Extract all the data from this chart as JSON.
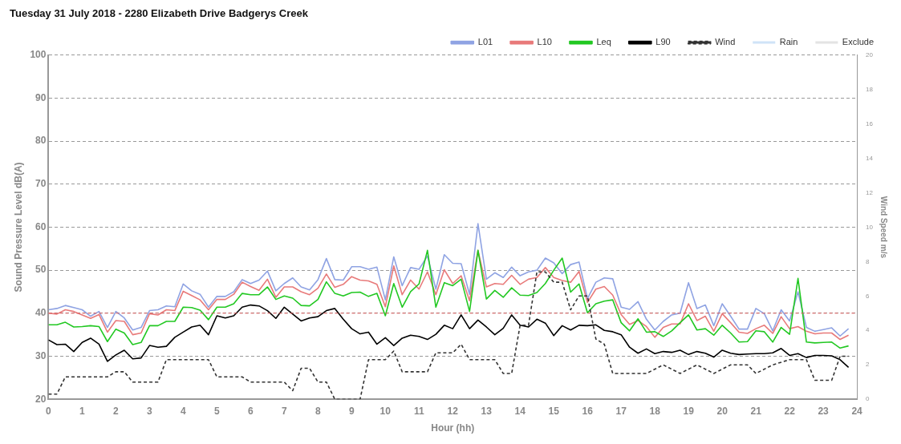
{
  "chart_data": {
    "type": "line",
    "title": "Tuesday 31 July 2018 - 2280 Elizabeth Drive Badgerys Creek",
    "xlabel": "Hour (hh)",
    "ylabel": "Sound Pressure Level dB(A)",
    "y2label": "Wind Speed m/s",
    "x": [
      0,
      0.25,
      0.5,
      0.75,
      1,
      1.25,
      1.5,
      1.75,
      2,
      2.25,
      2.5,
      2.75,
      3,
      3.25,
      3.5,
      3.75,
      4,
      4.25,
      4.5,
      4.75,
      5,
      5.25,
      5.5,
      5.75,
      6,
      6.25,
      6.5,
      6.75,
      7,
      7.25,
      7.5,
      7.75,
      8,
      8.25,
      8.5,
      8.75,
      9,
      9.25,
      9.5,
      9.75,
      10,
      10.25,
      10.5,
      10.75,
      11,
      11.25,
      11.5,
      11.75,
      12,
      12.25,
      12.5,
      12.75,
      13,
      13.25,
      13.5,
      13.75,
      14,
      14.25,
      14.5,
      14.75,
      15,
      15.25,
      15.5,
      15.75,
      16,
      16.25,
      16.5,
      16.75,
      17,
      17.25,
      17.5,
      17.75,
      18,
      18.25,
      18.5,
      18.75,
      19,
      19.25,
      19.5,
      19.75,
      20,
      20.25,
      20.5,
      20.75,
      21,
      21.25,
      21.5,
      21.75,
      22,
      22.25,
      22.5,
      22.75,
      23,
      23.25,
      23.5,
      23.75
    ],
    "series": [
      {
        "name": "L01",
        "color": "#8fa3e3",
        "values": [
          40.8,
          41.1,
          41.8,
          41.3,
          40.8,
          39.3,
          40.4,
          36.7,
          40.4,
          38.9,
          36.1,
          36.7,
          40.6,
          40.8,
          41.7,
          41.5,
          46.8,
          45.2,
          44.4,
          41.4,
          43.9,
          43.9,
          45,
          47.8,
          46.9,
          47.7,
          49.8,
          45.2,
          46.9,
          48.2,
          46.1,
          45.4,
          47.8,
          52.7,
          47.8,
          47.7,
          50.8,
          50.8,
          50.2,
          50.7,
          43.1,
          53.1,
          46.4,
          50.6,
          50.2,
          53.3,
          45.6,
          53.6,
          51.6,
          51.5,
          44.4,
          60.8,
          47.9,
          49.4,
          48.3,
          50.7,
          48.7,
          49.6,
          50,
          52.8,
          51.7,
          49.2,
          51.3,
          51.9,
          43.4,
          47.2,
          48.2,
          48,
          41.4,
          40.9,
          42.7,
          38.6,
          36.1,
          38.1,
          39.6,
          40,
          47.1,
          41.1,
          41.9,
          37.1,
          42.2,
          39.3,
          36.3,
          36.3,
          41.1,
          39.9,
          35.9,
          40.8,
          38.2,
          45,
          36.7,
          35.8,
          36.2,
          36.6,
          34.7,
          36.4
        ]
      },
      {
        "name": "L10",
        "color": "#e87a7a",
        "values": [
          40,
          39.8,
          40.8,
          40.4,
          39.6,
          38.8,
          39.7,
          35.6,
          38.3,
          38.1,
          35,
          35.4,
          39.9,
          39.6,
          40.8,
          40.6,
          45.1,
          44.1,
          43.1,
          40.8,
          43.2,
          43.2,
          44.4,
          47.2,
          46.2,
          45.3,
          47.9,
          43.7,
          46.1,
          46.1,
          45,
          44.3,
          45.8,
          49.1,
          46,
          46.7,
          48.5,
          47.7,
          47.5,
          46.7,
          41.5,
          51,
          44.3,
          47.7,
          45.6,
          49.6,
          44.3,
          50.1,
          46.9,
          48.7,
          42.9,
          54.6,
          46.1,
          46.9,
          46.7,
          48.8,
          46.7,
          47.9,
          48.3,
          50.6,
          48.3,
          47.6,
          47.2,
          49.7,
          42.5,
          45.6,
          46.2,
          44.2,
          39.7,
          37.4,
          38.3,
          36.9,
          34.4,
          36.7,
          37.5,
          37.5,
          42.2,
          38.3,
          39.3,
          35.8,
          39.9,
          37.8,
          35.6,
          35.3,
          36.4,
          37.2,
          35.3,
          39.2,
          36.4,
          36.9,
          35.8,
          35.2,
          35.4,
          35.4,
          33.9,
          34.9
        ]
      },
      {
        "name": "Leq",
        "color": "#22c822",
        "values": [
          37.3,
          37.3,
          37.9,
          36.8,
          36.9,
          37.1,
          36.9,
          33.4,
          36.3,
          35.4,
          32.7,
          33.2,
          37.1,
          37.1,
          38.1,
          38.1,
          41.4,
          41.3,
          40.7,
          38.5,
          41.4,
          41.4,
          42.2,
          44.6,
          44.3,
          44.3,
          46.1,
          43.2,
          44,
          43.5,
          41.8,
          41.7,
          43.2,
          47.3,
          44.6,
          44,
          44.8,
          44.9,
          43.9,
          44.6,
          39.4,
          46.9,
          41.4,
          45,
          46.8,
          54.6,
          41.4,
          47.1,
          46.4,
          47.9,
          40.4,
          54.6,
          43.3,
          45.3,
          43.7,
          45.9,
          44.2,
          44.1,
          44.8,
          46.9,
          50,
          52.8,
          44.9,
          46.8,
          40.1,
          42.2,
          42.8,
          43.1,
          37.8,
          35.9,
          38.7,
          35.6,
          35.7,
          34.6,
          35.9,
          37.8,
          39.6,
          36.1,
          36.4,
          34.9,
          37.2,
          35.4,
          33.3,
          33.4,
          35.9,
          35.7,
          33.3,
          36.7,
          35.1,
          48.1,
          33.3,
          33.1,
          33.2,
          33.3,
          31.9,
          32.4
        ]
      },
      {
        "name": "L90",
        "color": "#000000",
        "values": [
          33.8,
          32.7,
          32.8,
          31.1,
          33.2,
          34.2,
          32.8,
          28.8,
          30.3,
          31.4,
          29.4,
          29.6,
          32.5,
          32.1,
          32.3,
          34.4,
          35.6,
          36.8,
          37.2,
          35,
          39.4,
          38.9,
          39.4,
          41.4,
          41.9,
          41.7,
          40.6,
          38.8,
          41.4,
          39.8,
          38.2,
          38.9,
          39.2,
          40.6,
          41.1,
          38.6,
          36.4,
          35.2,
          35.6,
          32.8,
          34.3,
          32.5,
          34.2,
          34.9,
          34.6,
          33.9,
          35.1,
          37.2,
          36.4,
          39.6,
          36.4,
          38.4,
          36.8,
          35,
          36.5,
          39.6,
          37.2,
          36.8,
          38.6,
          37.7,
          34.8,
          37.1,
          36.1,
          37.2,
          37.1,
          37.3,
          36,
          35.7,
          35,
          32.1,
          30.7,
          31.7,
          30.6,
          31.1,
          30.9,
          31.4,
          30.4,
          31.1,
          30.7,
          29.8,
          31.4,
          30.7,
          30.4,
          30.5,
          30.6,
          30.6,
          30.8,
          31.8,
          30.2,
          30.6,
          29.7,
          30.2,
          30.2,
          30.1,
          29.2,
          27.4
        ]
      },
      {
        "name": "Wind",
        "type": "line",
        "axis": "y2",
        "color": "#333333",
        "line_style": "dashed",
        "x": [
          0,
          0.25,
          0.5,
          1.75,
          2,
          2.25,
          2.5,
          3.25,
          3.5,
          4.75,
          5,
          5.75,
          6,
          7,
          7.25,
          7.5,
          7.75,
          8,
          8.25,
          8.5,
          9.25,
          9.5,
          10,
          10.25,
          10.5,
          11.25,
          11.5,
          12,
          12.25,
          12.5,
          13.25,
          13.5,
          13.75,
          14,
          14.25,
          14.5,
          14.75,
          15,
          15.25,
          15.5,
          15.75,
          16,
          16.25,
          16.5,
          16.75,
          17.75,
          18.25,
          18.75,
          19.25,
          19.75,
          20.25,
          20.75,
          21,
          21.5,
          22,
          22.5,
          22.75,
          23.25,
          23.5,
          23.75
        ],
        "values": [
          0.3,
          0.3,
          1.3,
          1.3,
          1.6,
          1.6,
          1,
          1,
          2.3,
          2.3,
          1.3,
          1.3,
          1,
          1,
          0.5,
          1.8,
          1.8,
          1,
          1,
          0,
          0,
          2.3,
          2.3,
          2.8,
          1.6,
          1.6,
          2.7,
          2.7,
          3.2,
          2.3,
          2.3,
          1.5,
          1.5,
          4.3,
          4.3,
          7.4,
          7.4,
          6.8,
          6.8,
          5.2,
          6,
          6,
          3.5,
          3.2,
          1.5,
          1.5,
          2,
          1.5,
          2,
          1.5,
          2,
          2,
          1.5,
          2,
          2.3,
          2.3,
          1.1,
          1.1,
          2.5,
          2.5
        ]
      },
      {
        "name": "Rain",
        "type": "bar",
        "color": "#cfe3f7",
        "values": [
          null,
          null,
          null,
          null,
          null,
          null,
          null,
          null,
          null,
          null,
          null,
          null,
          null,
          null,
          null,
          null,
          null,
          null,
          null,
          null,
          null,
          null,
          null,
          null,
          null,
          null,
          null,
          null,
          null,
          null,
          null,
          null,
          null,
          null,
          null,
          null,
          null,
          null,
          null,
          null,
          null,
          null,
          null,
          null,
          null,
          null,
          null,
          null,
          null,
          null,
          null,
          null,
          null,
          null,
          null,
          null,
          null,
          null,
          null,
          null,
          null,
          null,
          null,
          null,
          null,
          null,
          null,
          null,
          null,
          null,
          null,
          null,
          null,
          null,
          null,
          null,
          null,
          null,
          null,
          null,
          null,
          null,
          null,
          null,
          null,
          null,
          null,
          null,
          null,
          null,
          null,
          null,
          null,
          null,
          null,
          null
        ]
      },
      {
        "name": "Exclude",
        "type": "bar",
        "color": "#e3e3e3",
        "values": [
          null,
          null,
          null,
          null,
          null,
          null,
          null,
          null,
          null,
          null,
          null,
          null,
          null,
          null,
          null,
          null,
          null,
          null,
          null,
          null,
          null,
          null,
          null,
          null,
          null,
          null,
          null,
          null,
          null,
          null,
          null,
          null,
          null,
          null,
          null,
          null,
          null,
          null,
          null,
          null,
          null,
          null,
          null,
          null,
          null,
          null,
          null,
          null,
          null,
          null,
          null,
          null,
          null,
          null,
          null,
          null,
          null,
          null,
          null,
          null,
          null,
          null,
          null,
          null,
          null,
          null,
          null,
          null,
          null,
          null,
          null,
          null,
          null,
          null,
          null,
          null,
          null,
          null,
          null,
          null,
          null,
          null,
          null,
          null,
          null,
          null,
          null,
          null,
          null,
          null,
          null,
          null,
          null,
          null,
          null,
          null
        ]
      }
    ],
    "xlim": [
      0,
      24
    ],
    "xticks": [
      0,
      1,
      2,
      3,
      4,
      5,
      6,
      7,
      8,
      9,
      10,
      11,
      12,
      13,
      14,
      15,
      16,
      17,
      18,
      19,
      20,
      21,
      22,
      23,
      24
    ],
    "ylim": [
      20,
      100
    ],
    "yticks": [
      20,
      30,
      40,
      50,
      60,
      70,
      80,
      90,
      100
    ],
    "y2lim": [
      0,
      20
    ],
    "y2ticks": [
      0,
      2,
      4,
      6,
      8,
      10,
      12,
      14,
      16,
      18,
      20
    ],
    "ref_lines": [
      {
        "axis": "y2",
        "value": 5,
        "color": "#e06060",
        "line_style": "dashed"
      }
    ],
    "grid": "y",
    "legend": "top right"
  }
}
